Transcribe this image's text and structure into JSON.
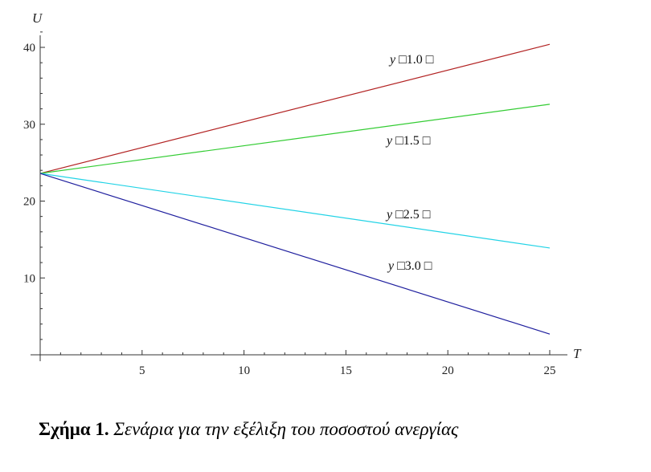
{
  "chart_data": {
    "type": "line",
    "title": "",
    "xlabel": "T",
    "ylabel": "U",
    "xlim": [
      0,
      25
    ],
    "ylim": [
      0,
      42
    ],
    "xticks": [
      5,
      10,
      15,
      20,
      25
    ],
    "yticks": [
      10,
      20,
      30,
      40
    ],
    "grid": false,
    "legend": "inline labels near line ends",
    "series": [
      {
        "name": "y □1.0 □",
        "color": "#b22222",
        "x": [
          0,
          25
        ],
        "values": [
          23.6,
          40.4
        ]
      },
      {
        "name": "y □1.5 □",
        "color": "#33cc33",
        "x": [
          0,
          25
        ],
        "values": [
          23.6,
          32.6
        ]
      },
      {
        "name": "y □2.5 □",
        "color": "#22d3e6",
        "x": [
          0,
          25
        ],
        "values": [
          23.6,
          13.9
        ]
      },
      {
        "name": "y □3.0 □",
        "color": "#1f1f9e",
        "x": [
          0,
          25
        ],
        "values": [
          23.6,
          2.7
        ]
      }
    ]
  },
  "caption": {
    "prefix": "Σχήμα 1.",
    "text": "Σενάρια για την εξέλιξη του ποσοστού ανεργίας"
  }
}
